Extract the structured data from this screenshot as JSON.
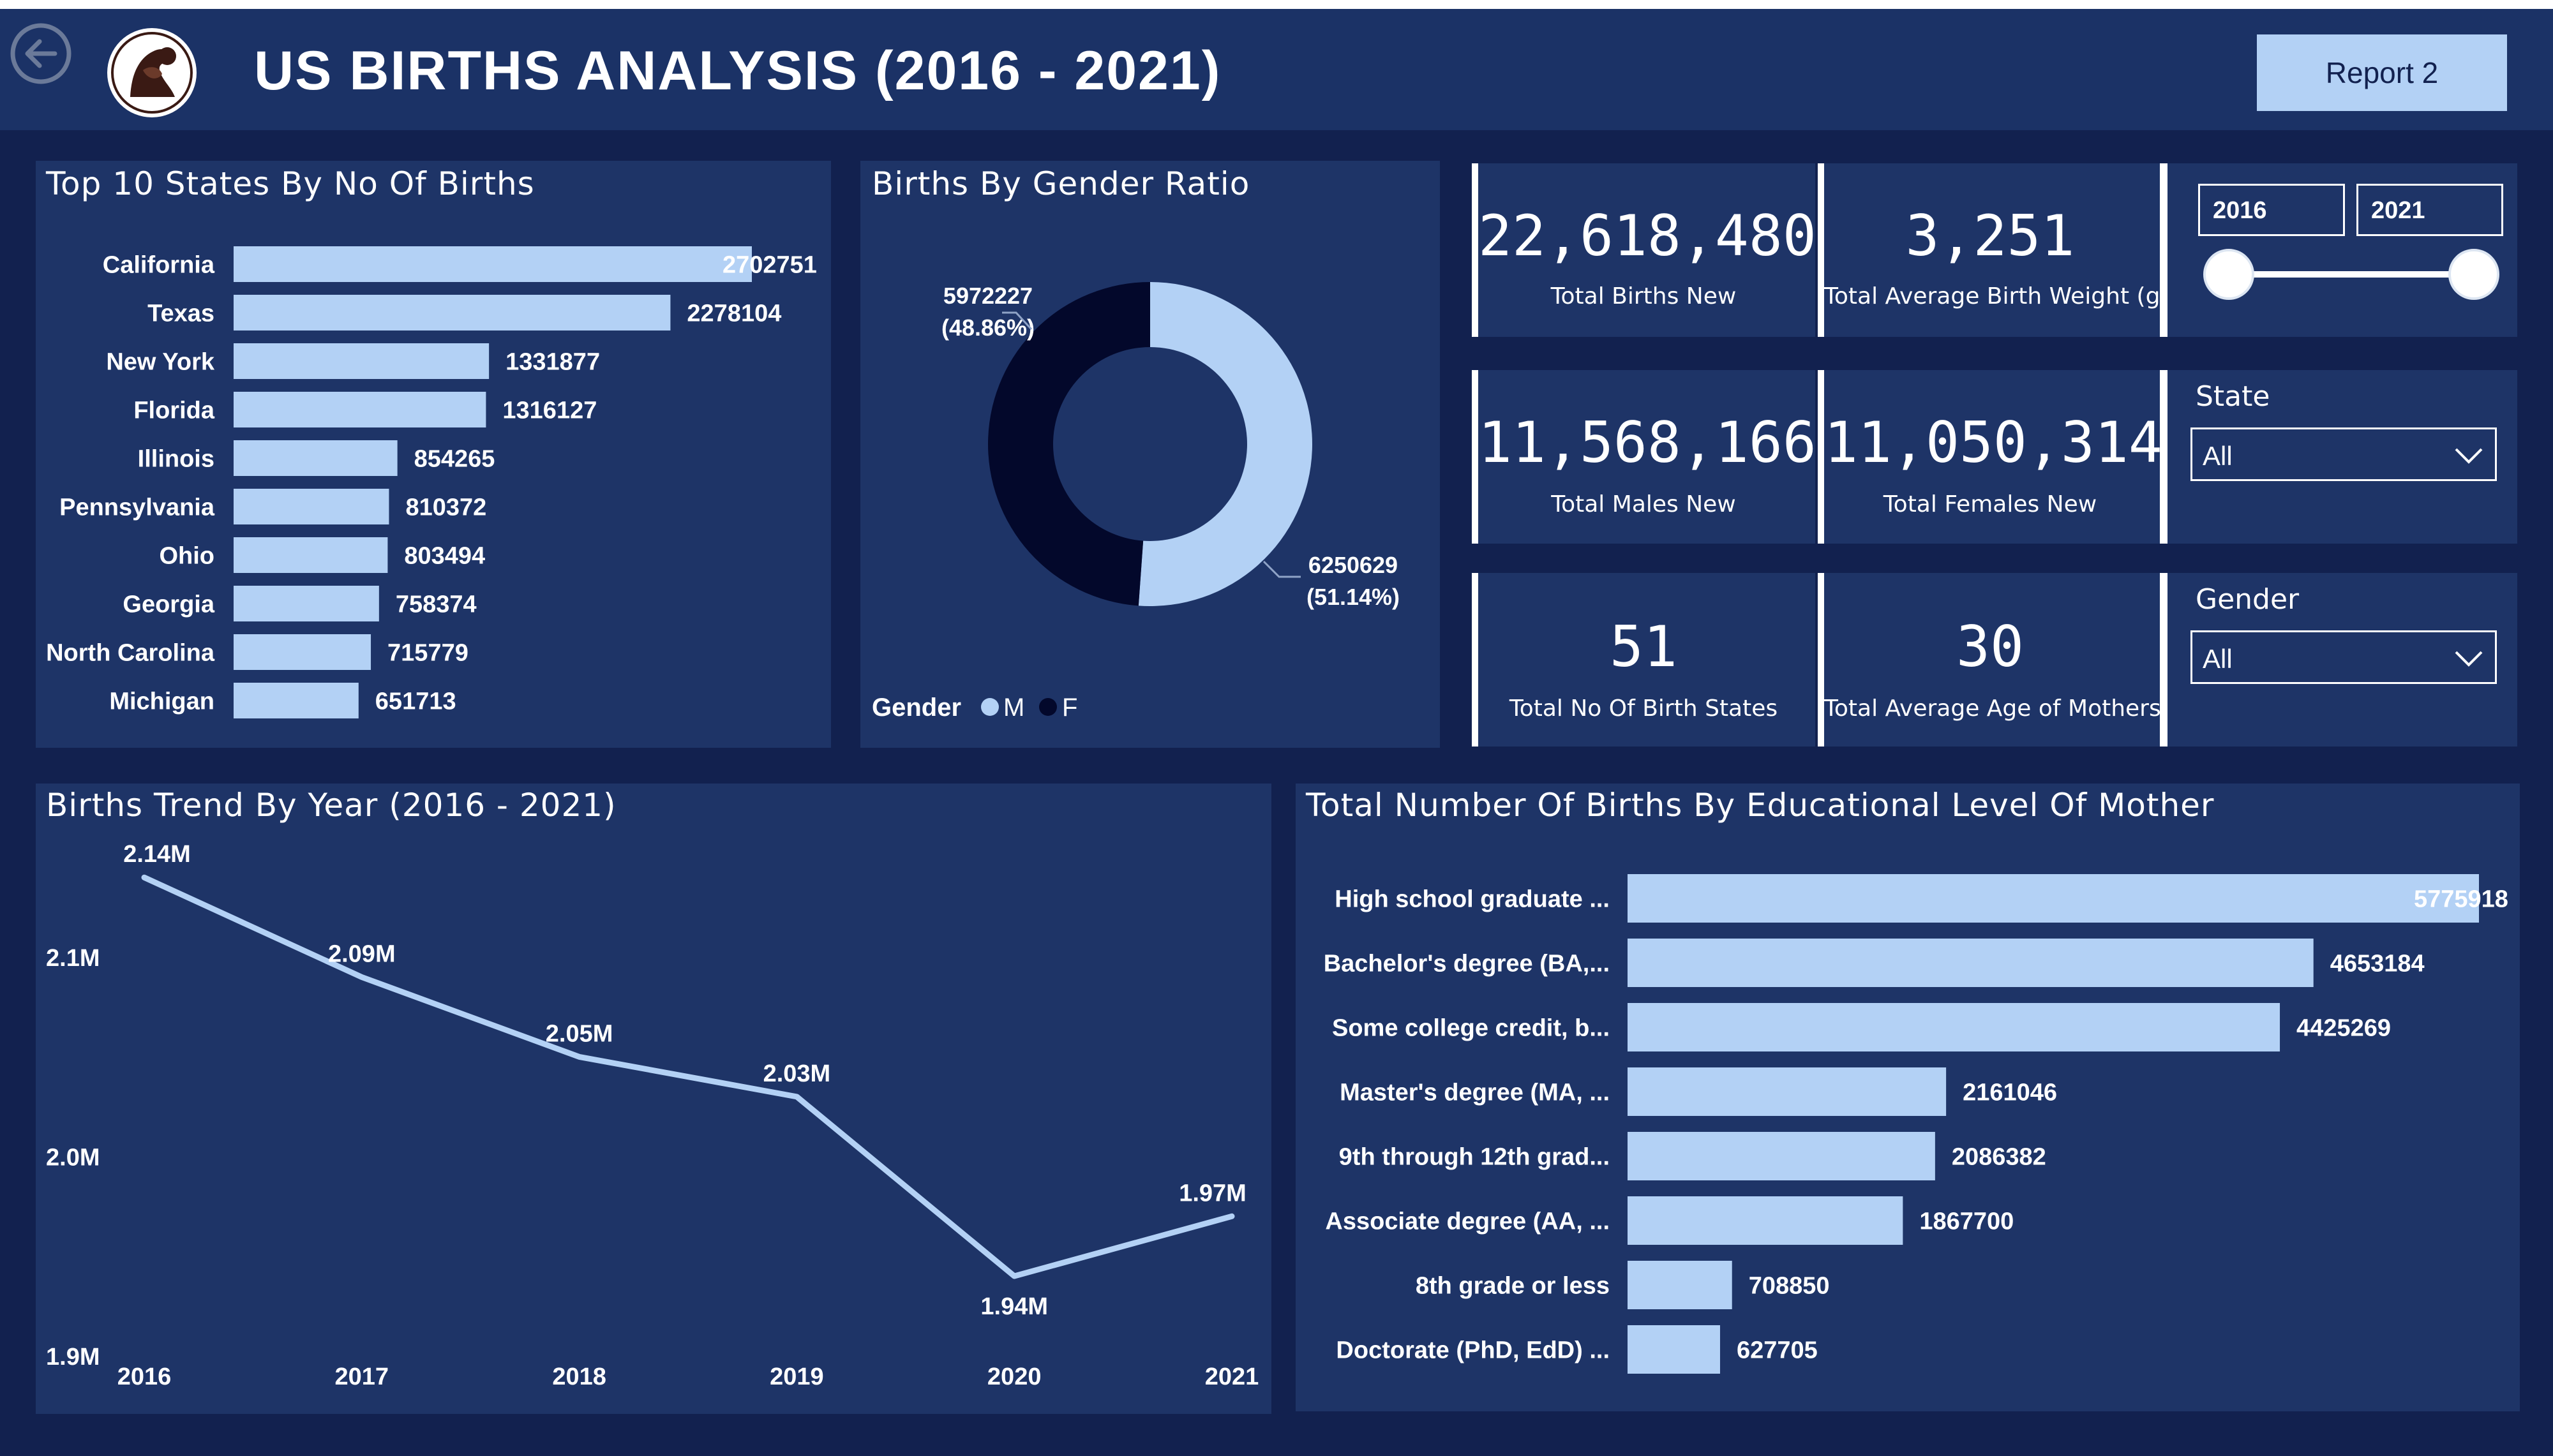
{
  "header": {
    "title": "US BIRTHS ANALYSIS (2016 - 2021)",
    "report_button": "Report 2"
  },
  "top_states": {
    "title": "Top 10 States By No Of Births"
  },
  "gender_ratio": {
    "title": "Births By Gender Ratio",
    "label_f_value": "5972227",
    "label_f_pct": "(48.86%)",
    "label_m_value": "6250629",
    "label_m_pct": "(51.14%)",
    "legend_title": "Gender",
    "legend_m": "M",
    "legend_f": "F"
  },
  "kpis": {
    "total_births": {
      "value": "22,618,480",
      "label": "Total Births New"
    },
    "avg_weight": {
      "value": "3,251",
      "label": "Total Average Birth Weight (g)"
    },
    "males": {
      "value": "11,568,166",
      "label": "Total Males New"
    },
    "females": {
      "value": "11,050,314",
      "label": "Total Females New"
    },
    "states": {
      "value": "51",
      "label": "Total No Of Birth States"
    },
    "avg_age": {
      "value": "30",
      "label": "Total Average Age of Mothers"
    }
  },
  "year_slicer": {
    "from": "2016",
    "to": "2021",
    "low_fraction": 0.0,
    "high_fraction": 1.0
  },
  "state_slicer": {
    "title": "State",
    "value": "All"
  },
  "gender_slicer": {
    "title": "Gender",
    "value": "All"
  },
  "trend": {
    "title": "Births Trend By Year (2016 - 2021)"
  },
  "education": {
    "title": "Total Number Of Births By Educational Level Of Mother"
  },
  "colors": {
    "background": "#12214f",
    "panel": "#1e3467",
    "bar": "#b3d1f5",
    "female": "#03082b",
    "text": "#ffffff"
  },
  "chart_data": [
    {
      "type": "bar",
      "orientation": "horizontal",
      "categories": [
        "California",
        "Texas",
        "New York",
        "Florida",
        "Illinois",
        "Pennsylvania",
        "Ohio",
        "Georgia",
        "North Carolina",
        "Michigan"
      ],
      "values": [
        2702751,
        2278104,
        1331877,
        1316127,
        854265,
        810372,
        803494,
        758374,
        715779,
        651713
      ]
    },
    {
      "type": "pie",
      "variant": "donut",
      "categories": [
        "M",
        "F"
      ],
      "values": [
        6250629,
        5972227
      ],
      "percentages": [
        51.14,
        48.86
      ]
    },
    {
      "type": "line",
      "x": [
        "2016",
        "2017",
        "2018",
        "2019",
        "2020",
        "2021"
      ],
      "values": [
        2.14,
        2.09,
        2.05,
        2.03,
        1.94,
        1.97
      ],
      "data_labels": [
        "2.14M",
        "2.09M",
        "2.05M",
        "2.03M",
        "1.94M",
        "1.97M"
      ],
      "y_ticks": [
        "2.1M",
        "2.0M",
        "1.9M"
      ],
      "y_tick_values": [
        2.1,
        2.0,
        1.9
      ],
      "ylim": [
        1.9,
        2.15
      ]
    },
    {
      "type": "bar",
      "orientation": "horizontal",
      "categories": [
        "High school graduate ...",
        "Bachelor's degree (BA,...",
        "Some college credit, b...",
        "Master's degree (MA, ...",
        "9th through 12th grad...",
        "Associate degree (AA, ...",
        "8th grade or less",
        "Doctorate (PhD, EdD) ..."
      ],
      "values": [
        5775918,
        4653184,
        4425269,
        2161046,
        2086382,
        1867700,
        708850,
        627705
      ]
    }
  ]
}
